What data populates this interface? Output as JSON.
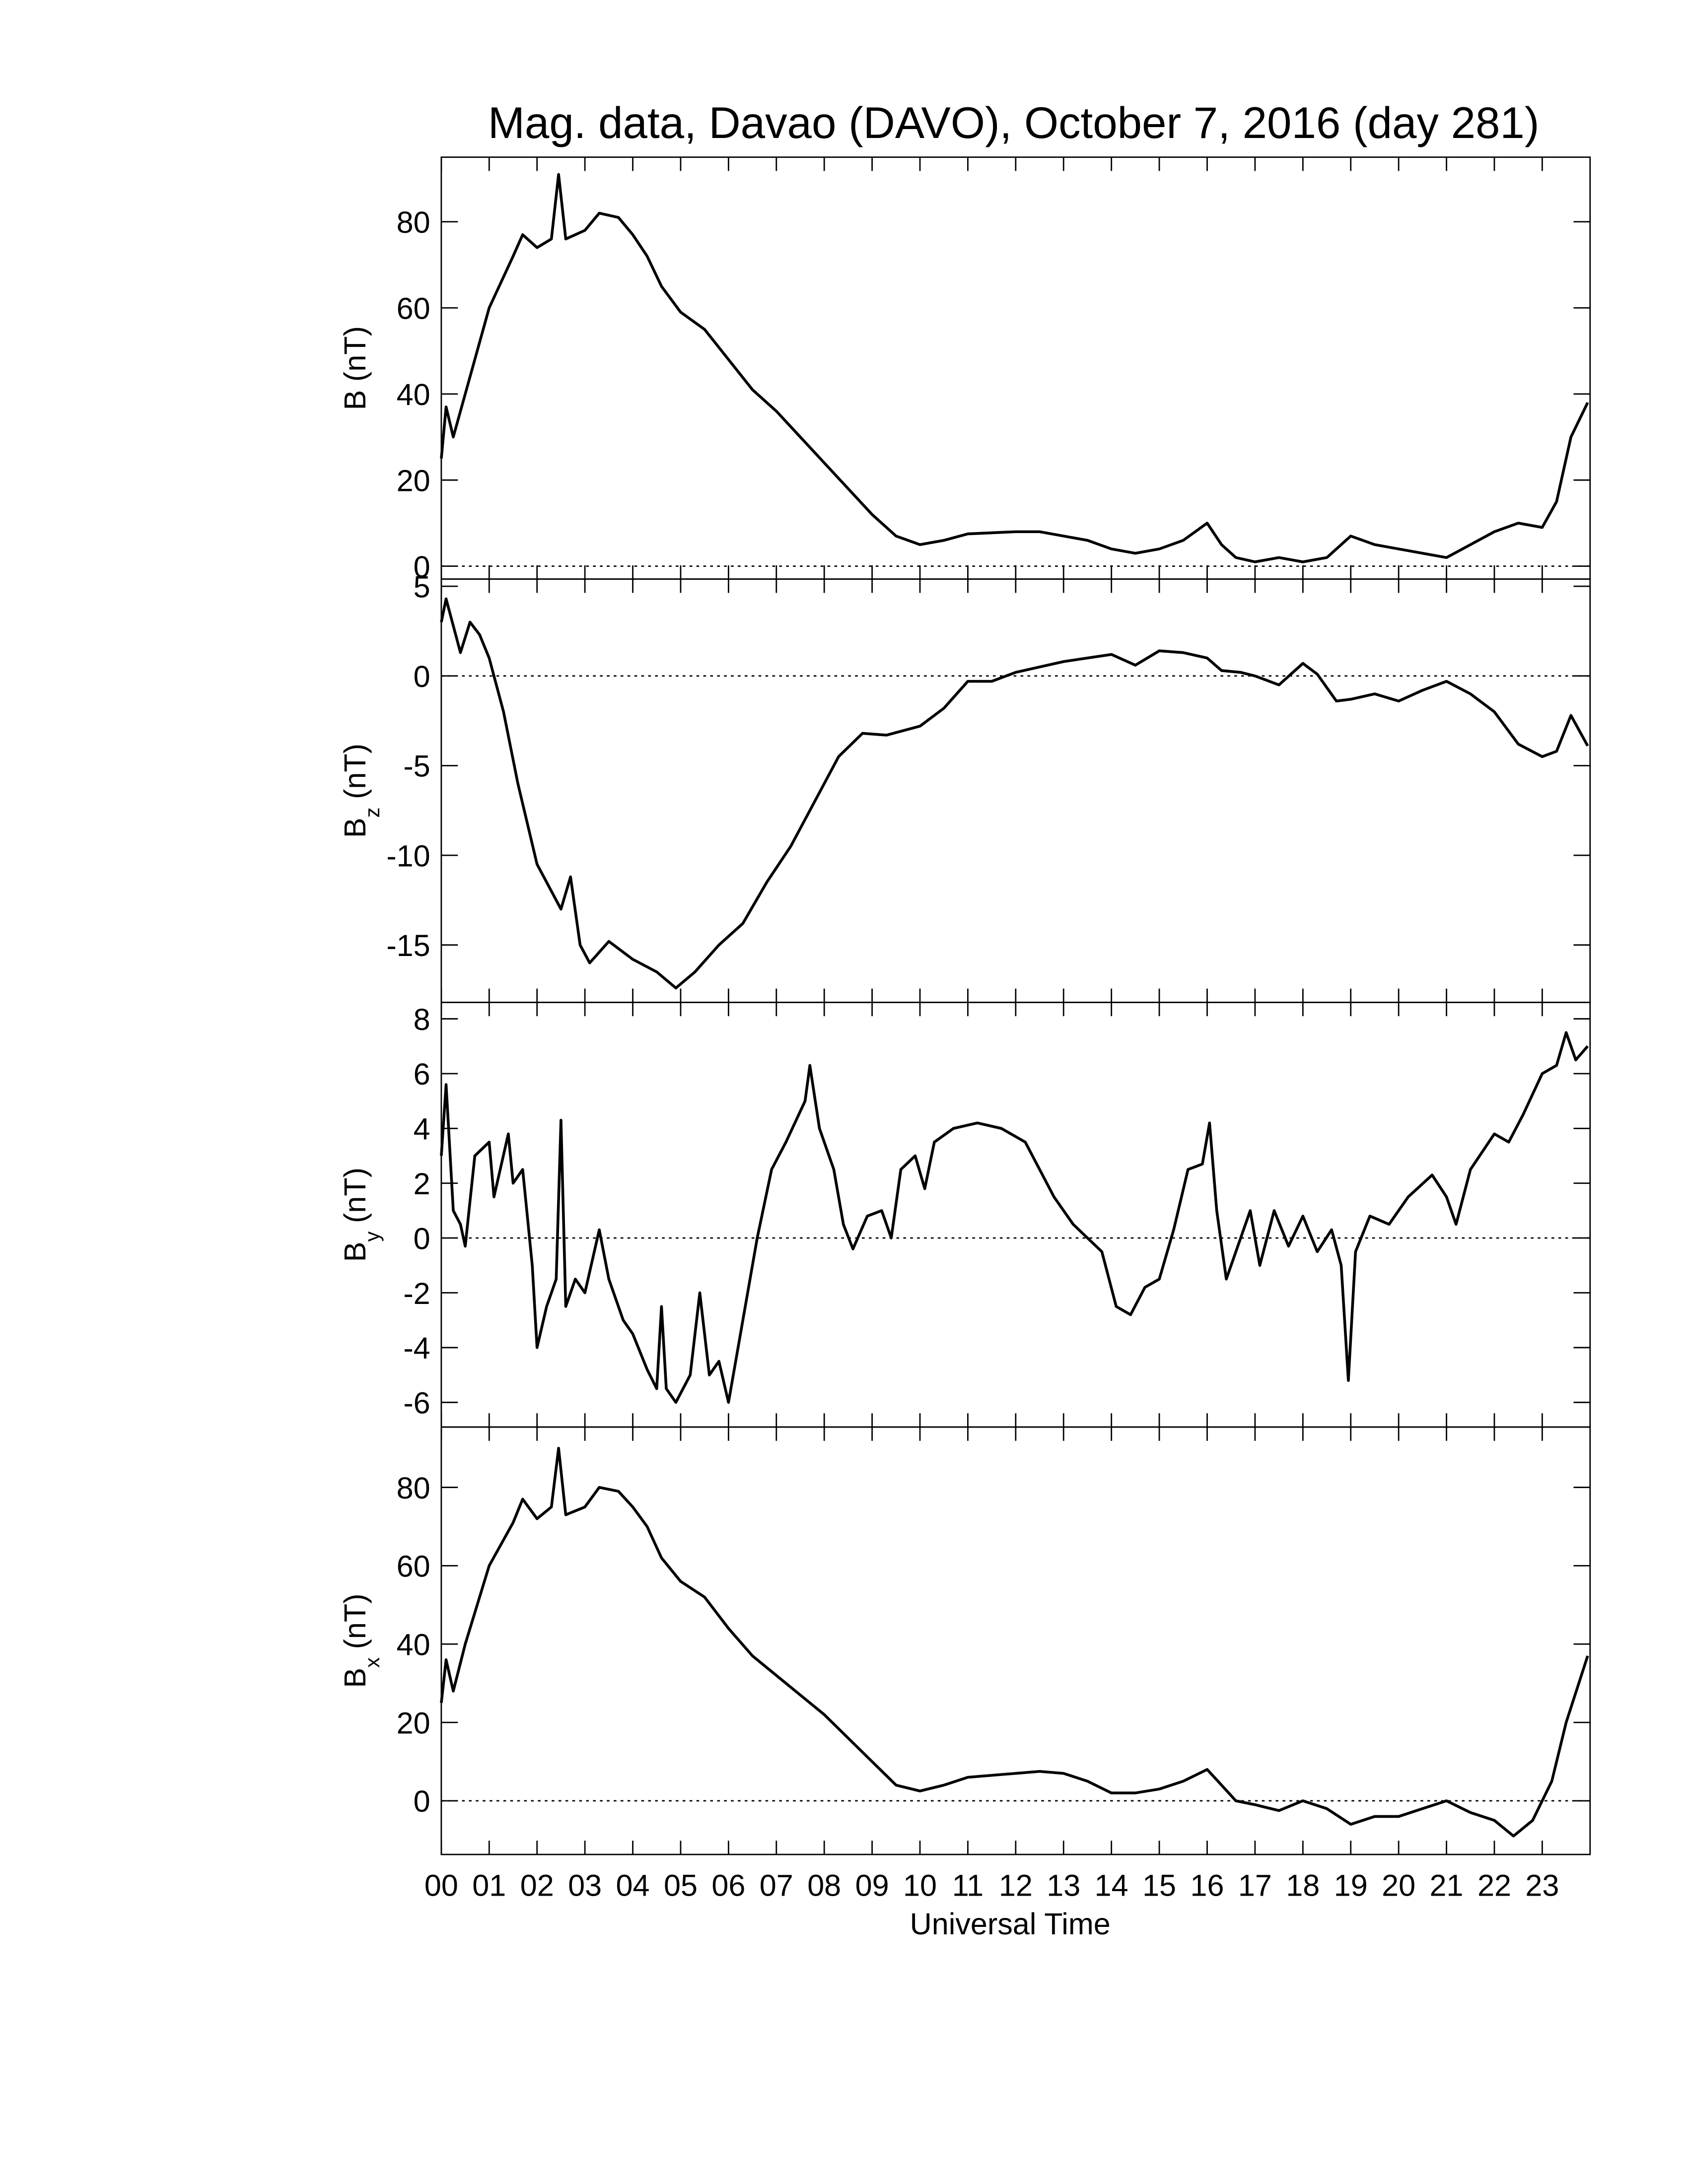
{
  "chart_data": [
    {
      "type": "line",
      "title": "Mag. data, Davao (DAVO), October 7, 2016 (day 281)",
      "ylabel": "B",
      "ylabel_unit": "(nT)",
      "color": "#000000",
      "zero_line": true,
      "xlim": [
        0,
        24
      ],
      "xticks": [
        0,
        1,
        2,
        3,
        4,
        5,
        6,
        7,
        8,
        9,
        10,
        11,
        12,
        13,
        14,
        15,
        16,
        17,
        18,
        19,
        20,
        21,
        22,
        23
      ],
      "ylim": [
        -3,
        95
      ],
      "yticks": [
        0,
        20,
        40,
        60,
        80
      ],
      "x": [
        0,
        0.1,
        0.25,
        0.5,
        1,
        1.5,
        1.7,
        2,
        2.3,
        2.45,
        2.6,
        3,
        3.3,
        3.7,
        4,
        4.3,
        4.6,
        5,
        5.5,
        6,
        6.5,
        7,
        7.5,
        8,
        8.5,
        9,
        9.5,
        10,
        10.5,
        11,
        12,
        12.5,
        13,
        13.5,
        14,
        14.5,
        15,
        15.5,
        16,
        16.3,
        16.6,
        17,
        17.5,
        18,
        18.5,
        19,
        19.5,
        20,
        20.5,
        21,
        21.5,
        22,
        22.5,
        23,
        23.3,
        23.6,
        23.95
      ],
      "values": [
        25,
        37,
        30,
        40,
        60,
        72,
        77,
        74,
        76,
        91,
        76,
        78,
        82,
        81,
        77,
        72,
        65,
        59,
        55,
        48,
        41,
        36,
        30,
        24,
        18,
        12,
        7,
        5,
        6,
        7.5,
        8,
        8,
        7,
        6,
        4,
        3,
        4,
        6,
        10,
        5,
        2,
        1,
        2,
        1,
        2,
        7,
        5,
        4,
        3,
        2,
        5,
        8,
        10,
        9,
        15,
        30,
        38
      ]
    },
    {
      "type": "line",
      "ylabel": "B",
      "ylabel_sub": "z",
      "ylabel_unit": "(nT)",
      "color": "#000000",
      "zero_line": true,
      "xlim": [
        0,
        24
      ],
      "xticks": [
        0,
        1,
        2,
        3,
        4,
        5,
        6,
        7,
        8,
        9,
        10,
        11,
        12,
        13,
        14,
        15,
        16,
        17,
        18,
        19,
        20,
        21,
        22,
        23
      ],
      "ylim": [
        -18.2,
        5.4
      ],
      "yticks": [
        -15,
        -10,
        -5,
        0,
        5
      ],
      "x": [
        0,
        0.1,
        0.4,
        0.6,
        0.8,
        1,
        1.3,
        1.6,
        2,
        2.3,
        2.5,
        2.7,
        2.9,
        3.1,
        3.5,
        4,
        4.5,
        4.9,
        5.3,
        5.8,
        6.3,
        6.8,
        7.3,
        7.8,
        8.3,
        8.8,
        9.3,
        10,
        10.5,
        11,
        11.5,
        12,
        12.5,
        13,
        13.5,
        14,
        14.5,
        15,
        15.5,
        16,
        16.3,
        16.7,
        17,
        17.5,
        18,
        18.3,
        18.7,
        19,
        19.5,
        20,
        20.5,
        21,
        21.5,
        22,
        22.5,
        23,
        23.3,
        23.6,
        23.95
      ],
      "values": [
        3,
        4.3,
        1.3,
        3,
        2.3,
        1,
        -2,
        -6,
        -10.5,
        -12,
        -13,
        -11.2,
        -15,
        -16,
        -14.8,
        -15.8,
        -16.5,
        -17.4,
        -16.5,
        -15,
        -13.8,
        -11.5,
        -9.5,
        -7,
        -4.5,
        -3.2,
        -3.3,
        -2.8,
        -1.8,
        -0.3,
        -0.3,
        0.2,
        0.5,
        0.8,
        1.0,
        1.2,
        0.6,
        1.4,
        1.3,
        1.0,
        0.3,
        0.2,
        0,
        -0.5,
        0.7,
        0.1,
        -1.4,
        -1.3,
        -1.0,
        -1.4,
        -0.8,
        -0.3,
        -1.0,
        -2.0,
        -3.8,
        -4.5,
        -4.2,
        -2.2,
        -3.9
      ]
    },
    {
      "type": "line",
      "ylabel": "B",
      "ylabel_sub": "y",
      "ylabel_unit": "(nT)",
      "color": "#000000",
      "zero_line": true,
      "xlim": [
        0,
        24
      ],
      "xticks": [
        0,
        1,
        2,
        3,
        4,
        5,
        6,
        7,
        8,
        9,
        10,
        11,
        12,
        13,
        14,
        15,
        16,
        17,
        18,
        19,
        20,
        21,
        22,
        23
      ],
      "ylim": [
        -6.9,
        8.6
      ],
      "yticks": [
        -6,
        -4,
        -2,
        0,
        2,
        4,
        6,
        8
      ],
      "x": [
        0,
        0.1,
        0.25,
        0.4,
        0.5,
        0.7,
        1,
        1.1,
        1.4,
        1.5,
        1.7,
        1.9,
        2.0,
        2.2,
        2.4,
        2.5,
        2.6,
        2.8,
        3.0,
        3.3,
        3.5,
        3.8,
        4.0,
        4.3,
        4.5,
        4.6,
        4.7,
        4.9,
        5.2,
        5.4,
        5.6,
        5.8,
        6.0,
        6.3,
        6.6,
        6.9,
        7.2,
        7.6,
        7.7,
        7.9,
        8.2,
        8.4,
        8.6,
        8.9,
        9.2,
        9.4,
        9.6,
        9.9,
        10.1,
        10.3,
        10.7,
        11.2,
        11.7,
        12.2,
        12.5,
        12.8,
        13.2,
        13.5,
        13.8,
        14.1,
        14.4,
        14.7,
        15.0,
        15.3,
        15.6,
        15.9,
        16.05,
        16.2,
        16.4,
        16.6,
        16.9,
        17.1,
        17.4,
        17.7,
        18.0,
        18.3,
        18.6,
        18.8,
        18.95,
        19.1,
        19.4,
        19.8,
        20.2,
        20.7,
        21.0,
        21.2,
        21.5,
        22.0,
        22.3,
        22.6,
        23.0,
        23.3,
        23.5,
        23.7,
        23.95
      ],
      "values": [
        3,
        5.6,
        1,
        0.5,
        -0.3,
        3,
        3.5,
        1.5,
        3.8,
        2,
        2.5,
        -1,
        -4,
        -2.5,
        -1.5,
        4.3,
        -2.5,
        -1.5,
        -2.0,
        0.3,
        -1.5,
        -3,
        -3.5,
        -4.8,
        -5.5,
        -2.5,
        -5.5,
        -6,
        -5,
        -2,
        -5,
        -4.5,
        -6,
        -3,
        0,
        2.5,
        3.5,
        5,
        6.3,
        4,
        2.5,
        0.5,
        -0.4,
        0.8,
        1.0,
        0,
        2.5,
        3.0,
        1.8,
        3.5,
        4,
        4.2,
        4.0,
        3.5,
        2.5,
        1.5,
        0.5,
        0,
        -0.5,
        -2.5,
        -2.8,
        -1.8,
        -1.5,
        0.3,
        2.5,
        2.7,
        4.2,
        1,
        -1.5,
        -0.5,
        1,
        -1,
        1,
        -0.3,
        0.8,
        -0.5,
        0.3,
        -1,
        -5.2,
        -0.5,
        0.8,
        0.5,
        1.5,
        2.3,
        1.5,
        0.5,
        2.5,
        3.8,
        3.5,
        4.5,
        6,
        6.3,
        7.5,
        6.5,
        7
      ]
    },
    {
      "type": "line",
      "ylabel": "B",
      "ylabel_sub": "x",
      "ylabel_unit": "(nT)",
      "color": "#000000",
      "zero_line": true,
      "xlabel": "Universal Time",
      "xlim": [
        0,
        24
      ],
      "xticks": [
        {
          "value": 0,
          "label": "00"
        },
        {
          "value": 1,
          "label": "01"
        },
        {
          "value": 2,
          "label": "02"
        },
        {
          "value": 3,
          "label": "03"
        },
        {
          "value": 4,
          "label": "04"
        },
        {
          "value": 5,
          "label": "05"
        },
        {
          "value": 6,
          "label": "06"
        },
        {
          "value": 7,
          "label": "07"
        },
        {
          "value": 8,
          "label": "08"
        },
        {
          "value": 9,
          "label": "09"
        },
        {
          "value": 10,
          "label": "10"
        },
        {
          "value": 11,
          "label": "11"
        },
        {
          "value": 12,
          "label": "12"
        },
        {
          "value": 13,
          "label": "13"
        },
        {
          "value": 14,
          "label": "14"
        },
        {
          "value": 15,
          "label": "15"
        },
        {
          "value": 16,
          "label": "16"
        },
        {
          "value": 17,
          "label": "17"
        },
        {
          "value": 18,
          "label": "18"
        },
        {
          "value": 19,
          "label": "19"
        },
        {
          "value": 20,
          "label": "20"
        },
        {
          "value": 21,
          "label": "21"
        },
        {
          "value": 22,
          "label": "22"
        },
        {
          "value": 23,
          "label": "23"
        }
      ],
      "ylim": [
        -13.7,
        95.4
      ],
      "yticks": [
        0,
        20,
        40,
        60,
        80
      ],
      "x": [
        0,
        0.1,
        0.25,
        0.5,
        1,
        1.5,
        1.7,
        2,
        2.3,
        2.45,
        2.6,
        3,
        3.3,
        3.7,
        4,
        4.3,
        4.6,
        5,
        5.5,
        6,
        6.5,
        7,
        7.5,
        8,
        8.5,
        9,
        9.5,
        10,
        10.5,
        11,
        12,
        12.5,
        13,
        13.5,
        14,
        14.5,
        15,
        15.5,
        16,
        16.3,
        16.6,
        17,
        17.5,
        18,
        18.5,
        19,
        19.5,
        20,
        20.5,
        21,
        21.5,
        22,
        22.4,
        22.8,
        23.2,
        23.5,
        23.95
      ],
      "values": [
        25,
        36,
        28,
        40,
        60,
        71,
        77,
        72,
        75,
        90,
        73,
        75,
        80,
        79,
        75,
        70,
        62,
        56,
        52,
        44,
        37,
        32,
        27,
        22,
        16,
        10,
        4,
        2.5,
        4,
        6,
        7,
        7.5,
        7,
        5,
        2,
        2,
        3,
        5,
        8,
        4,
        0,
        -1,
        -2.5,
        0,
        -2,
        -6,
        -4,
        -4,
        -2,
        0,
        -3,
        -5,
        -9,
        -5,
        5,
        20,
        37
      ]
    }
  ]
}
